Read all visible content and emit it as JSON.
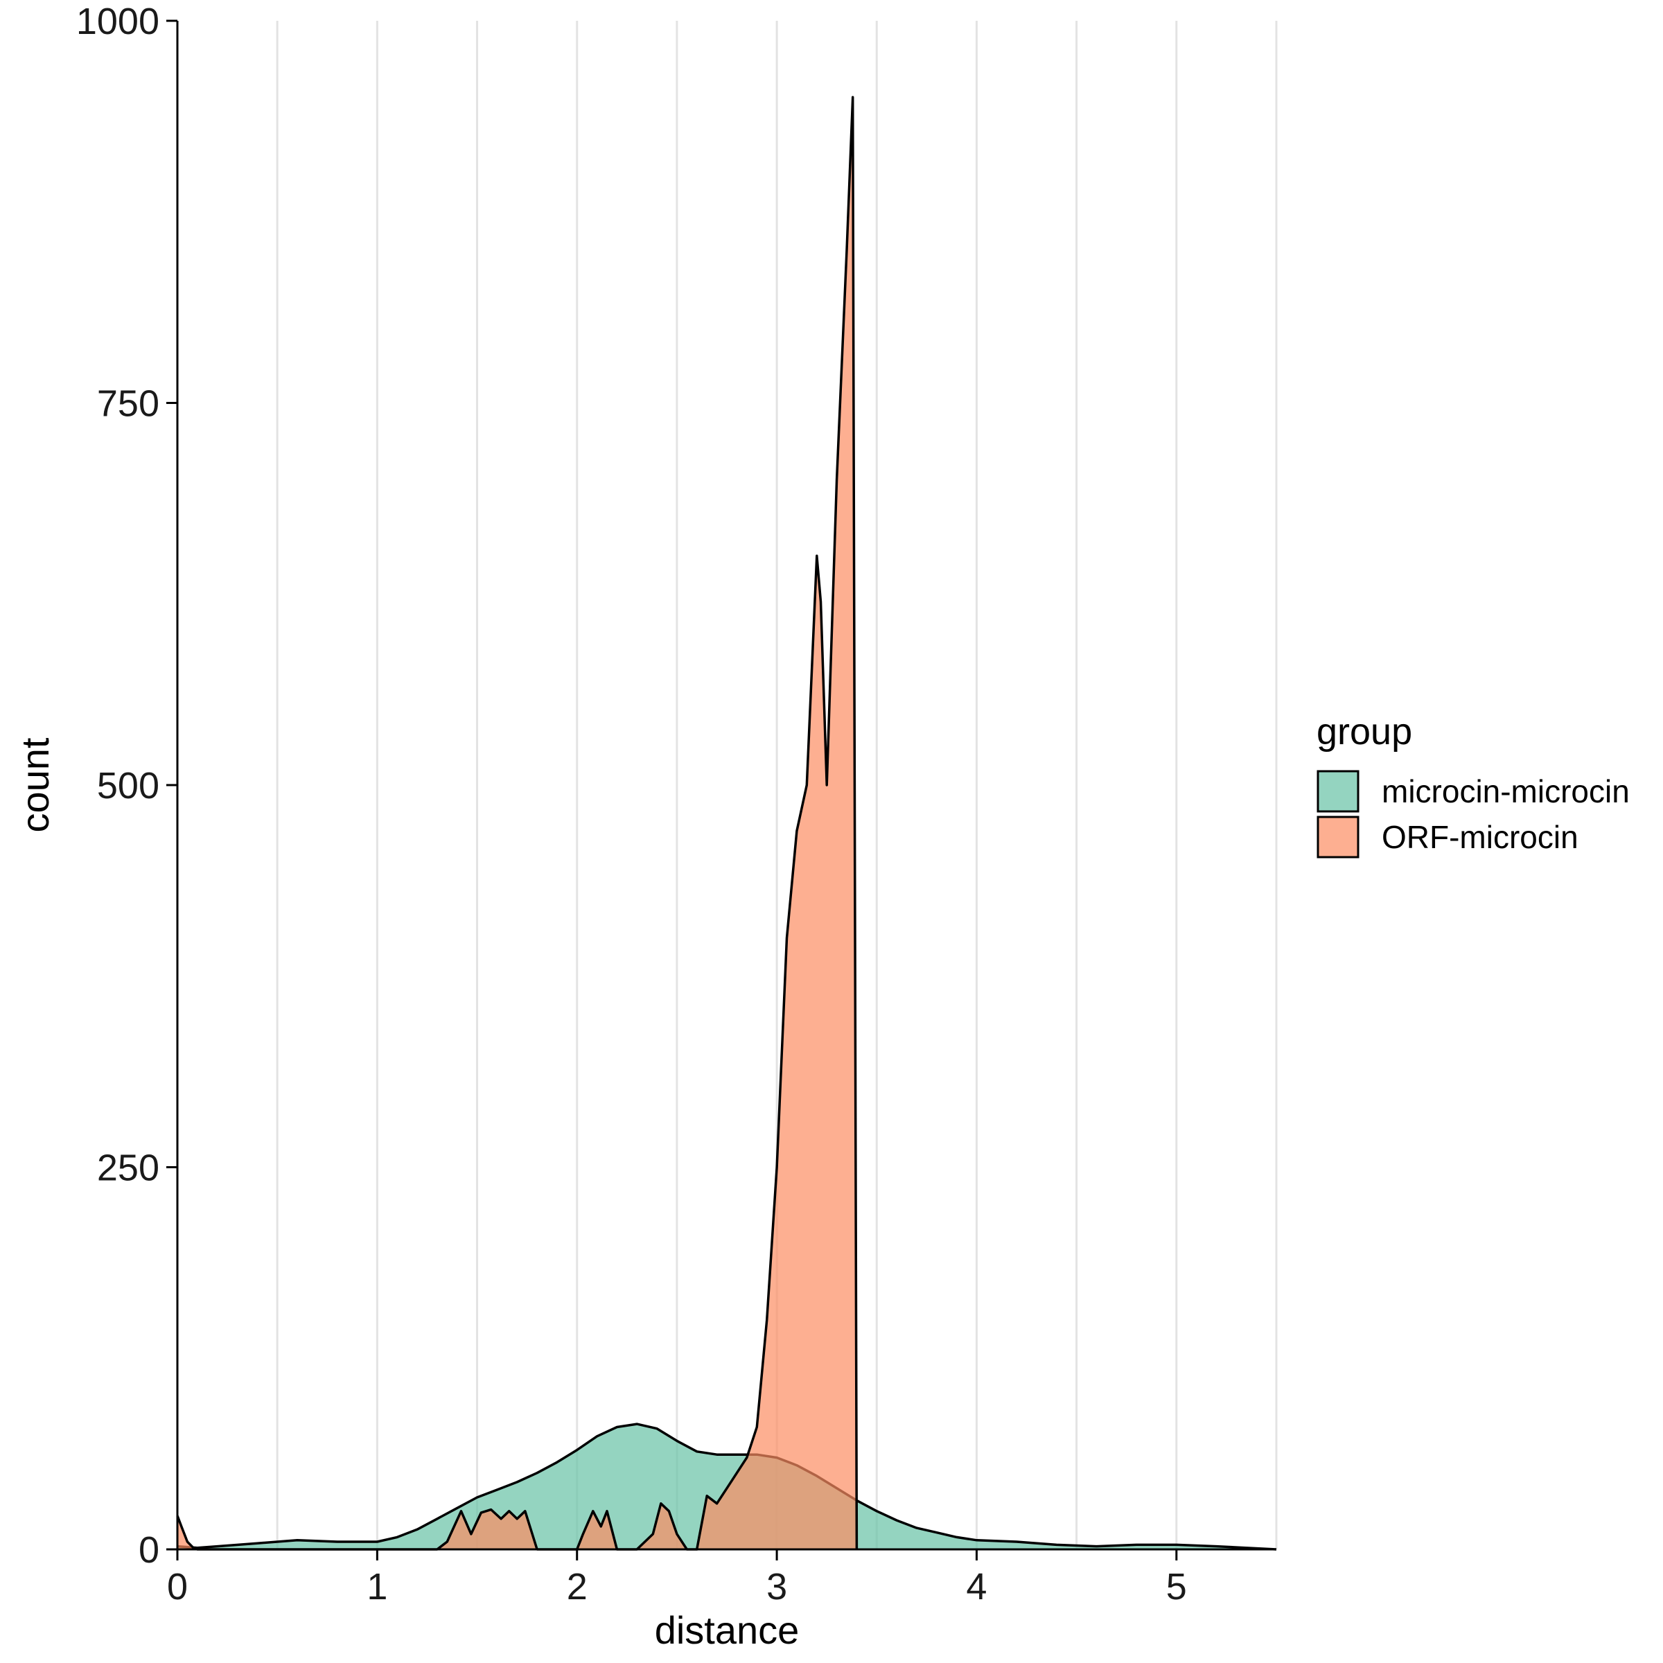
{
  "chart_data": {
    "type": "area",
    "title": "",
    "xlabel": "distance",
    "ylabel": "count",
    "xlim": [
      0,
      5.5
    ],
    "ylim": [
      0,
      1000
    ],
    "xticks": [
      0,
      1,
      2,
      3,
      4,
      5
    ],
    "yticks": [
      0,
      250,
      500,
      750,
      1000
    ],
    "vertical_gridlines": [
      0.5,
      1,
      1.5,
      2,
      2.5,
      3,
      3.5,
      4,
      4.5,
      5,
      5.5
    ],
    "legend": {
      "title": "group",
      "position": "right",
      "entries": [
        {
          "label": "microcin-microcin",
          "color": "#66c2a5"
        },
        {
          "label": "ORF-microcin",
          "color": "#fc8d62"
        }
      ]
    },
    "series": [
      {
        "name": "microcin-microcin",
        "color": "#66c2a5",
        "opacity": 0.7,
        "x": [
          0.0,
          0.1,
          0.2,
          0.4,
          0.6,
          0.8,
          1.0,
          1.1,
          1.2,
          1.3,
          1.4,
          1.5,
          1.6,
          1.7,
          1.8,
          1.9,
          2.0,
          2.1,
          2.2,
          2.3,
          2.4,
          2.5,
          2.6,
          2.7,
          2.8,
          2.9,
          3.0,
          3.1,
          3.2,
          3.3,
          3.4,
          3.5,
          3.6,
          3.7,
          3.8,
          3.9,
          4.0,
          4.2,
          4.4,
          4.6,
          4.8,
          5.0,
          5.2,
          5.5
        ],
        "y": [
          2,
          1,
          2,
          4,
          6,
          5,
          5,
          8,
          13,
          20,
          27,
          34,
          39,
          44,
          50,
          57,
          65,
          74,
          80,
          82,
          79,
          71,
          64,
          62,
          62,
          62,
          60,
          55,
          48,
          40,
          32,
          25,
          19,
          14,
          11,
          8,
          6,
          5,
          3,
          2,
          3,
          3,
          2,
          0
        ]
      },
      {
        "name": "ORF-microcin",
        "color": "#fc8d62",
        "opacity": 0.7,
        "x": [
          0.0,
          0.02,
          0.05,
          0.08,
          0.1,
          0.3,
          0.6,
          1.0,
          1.3,
          1.35,
          1.42,
          1.47,
          1.52,
          1.57,
          1.62,
          1.66,
          1.7,
          1.74,
          1.8,
          1.9,
          2.0,
          2.03,
          2.08,
          2.12,
          2.15,
          2.2,
          2.25,
          2.3,
          2.38,
          2.42,
          2.46,
          2.5,
          2.55,
          2.6,
          2.65,
          2.7,
          2.75,
          2.8,
          2.85,
          2.9,
          2.95,
          3.0,
          3.05,
          3.1,
          3.15,
          3.2,
          3.22,
          3.25,
          3.3,
          3.35,
          3.38,
          3.4
        ],
        "y": [
          22,
          15,
          5,
          1,
          0,
          0,
          0,
          0,
          0,
          5,
          25,
          10,
          24,
          26,
          20,
          25,
          20,
          25,
          0,
          0,
          0,
          10,
          25,
          15,
          25,
          0,
          0,
          0,
          10,
          30,
          25,
          10,
          0,
          0,
          35,
          30,
          40,
          50,
          60,
          80,
          150,
          250,
          400,
          470,
          500,
          650,
          620,
          500,
          700,
          850,
          950,
          0
        ]
      }
    ]
  }
}
